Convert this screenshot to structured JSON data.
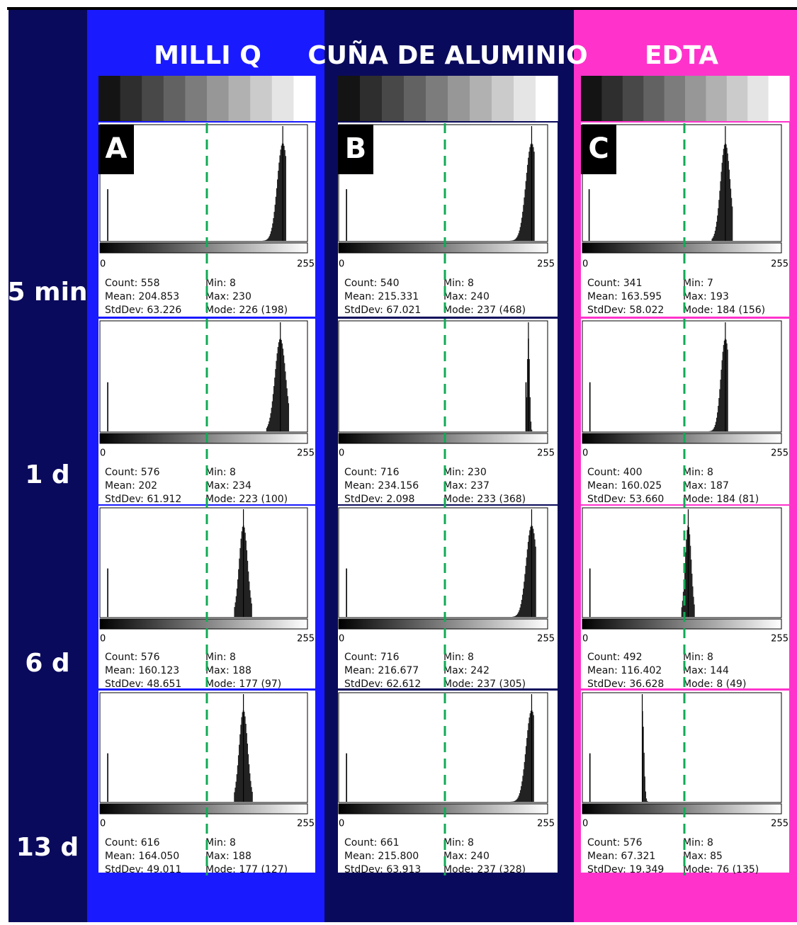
{
  "colors": {
    "navy": "#0a0a5c",
    "blue": "#1a1aff",
    "pink": "#ff33cc",
    "guide": "#11aa55"
  },
  "time_labels": [
    "5 min",
    "1 d",
    "6 d",
    "13 d"
  ],
  "axis": {
    "min_label": "0",
    "max_label": "255"
  },
  "stat_keys": {
    "count": "Count: ",
    "mean": "Mean: ",
    "stddev": "StdDev: ",
    "min": "Min: ",
    "max": "Max: ",
    "mode": "Mode: "
  },
  "chart_data": [
    {
      "type": "histogram-panel",
      "title": "MILLI Q",
      "letter": "A",
      "histograms": [
        {
          "count": "558",
          "mean": "204.853",
          "stddev": "63.226",
          "min": "8",
          "max": "230",
          "mode": "226 (198)"
        },
        {
          "count": "576",
          "mean": "202",
          "stddev": "61.912",
          "min": "8",
          "max": "234",
          "mode": "223 (100)"
        },
        {
          "count": "576",
          "mean": "160.123",
          "stddev": "48.651",
          "min": "8",
          "max": "188",
          "mode": "177 (97)"
        },
        {
          "count": "616",
          "mean": "164.050",
          "stddev": "49.011",
          "min": "8",
          "max": "188",
          "mode": "177 (127)"
        }
      ]
    },
    {
      "type": "histogram-panel",
      "title": "CUÑA DE ALUMINIO",
      "letter": "B",
      "histograms": [
        {
          "count": "540",
          "mean": "215.331",
          "stddev": "67.021",
          "min": "8",
          "max": "240",
          "mode": "237 (468)"
        },
        {
          "count": "716",
          "mean": "234.156",
          "stddev": "2.098",
          "min": "230",
          "max": "237",
          "mode": "233 (368)"
        },
        {
          "count": "716",
          "mean": "216.677",
          "stddev": "62.612",
          "min": "8",
          "max": "242",
          "mode": "237 (305)"
        },
        {
          "count": "661",
          "mean": "215.800",
          "stddev": "63.913",
          "min": "8",
          "max": "240",
          "mode": "237 (328)"
        }
      ]
    },
    {
      "type": "histogram-panel",
      "title": "EDTA",
      "letter": "C",
      "histograms": [
        {
          "count": "341",
          "mean": "163.595",
          "stddev": "58.022",
          "min": "7",
          "max": "193",
          "mode": "184 (156)"
        },
        {
          "count": "400",
          "mean": "160.025",
          "stddev": "53.660",
          "min": "8",
          "max": "187",
          "mode": "184 (81)"
        },
        {
          "count": "492",
          "mean": "116.402",
          "stddev": "36.628",
          "min": "8",
          "max": "144",
          "mode": "8 (49)"
        },
        {
          "count": "576",
          "mean": "67.321",
          "stddev": "19.349",
          "min": "8",
          "max": "85",
          "mode": "76 (135)"
        }
      ]
    }
  ]
}
